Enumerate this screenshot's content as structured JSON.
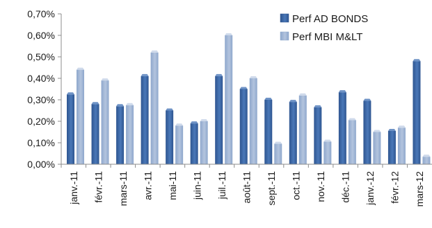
{
  "chart_data": {
    "type": "bar",
    "categories": [
      "janv.-11",
      "févr.-11",
      "mars-11",
      "avr.-11",
      "mai-11",
      "juin-11",
      "juil.-11",
      "août-11",
      "sept.-11",
      "oct.-11",
      "nov.-11",
      "déc.-11",
      "janv.-12",
      "févr.-12",
      "mars-12"
    ],
    "series": [
      {
        "name": "Perf AD BONDS",
        "color": "#2e5590",
        "values": [
          0.325,
          0.28,
          0.27,
          0.41,
          0.25,
          0.19,
          0.41,
          0.35,
          0.3,
          0.29,
          0.265,
          0.335,
          0.295,
          0.155,
          0.48
        ]
      },
      {
        "name": "Perf MBI M&LT",
        "color": "#8ea7cc",
        "values": [
          0.44,
          0.39,
          0.275,
          0.52,
          0.18,
          0.2,
          0.6,
          0.4,
          0.095,
          0.32,
          0.105,
          0.205,
          0.15,
          0.17,
          0.035
        ]
      }
    ],
    "ylim": [
      0,
      0.7
    ],
    "yticks": [
      "0,00%",
      "0,10%",
      "0,20%",
      "0,30%",
      "0,40%",
      "0,50%",
      "0,60%",
      "0,70%"
    ],
    "title": "",
    "xlabel": "",
    "ylabel": "",
    "grid": false,
    "legend": "top-right"
  }
}
